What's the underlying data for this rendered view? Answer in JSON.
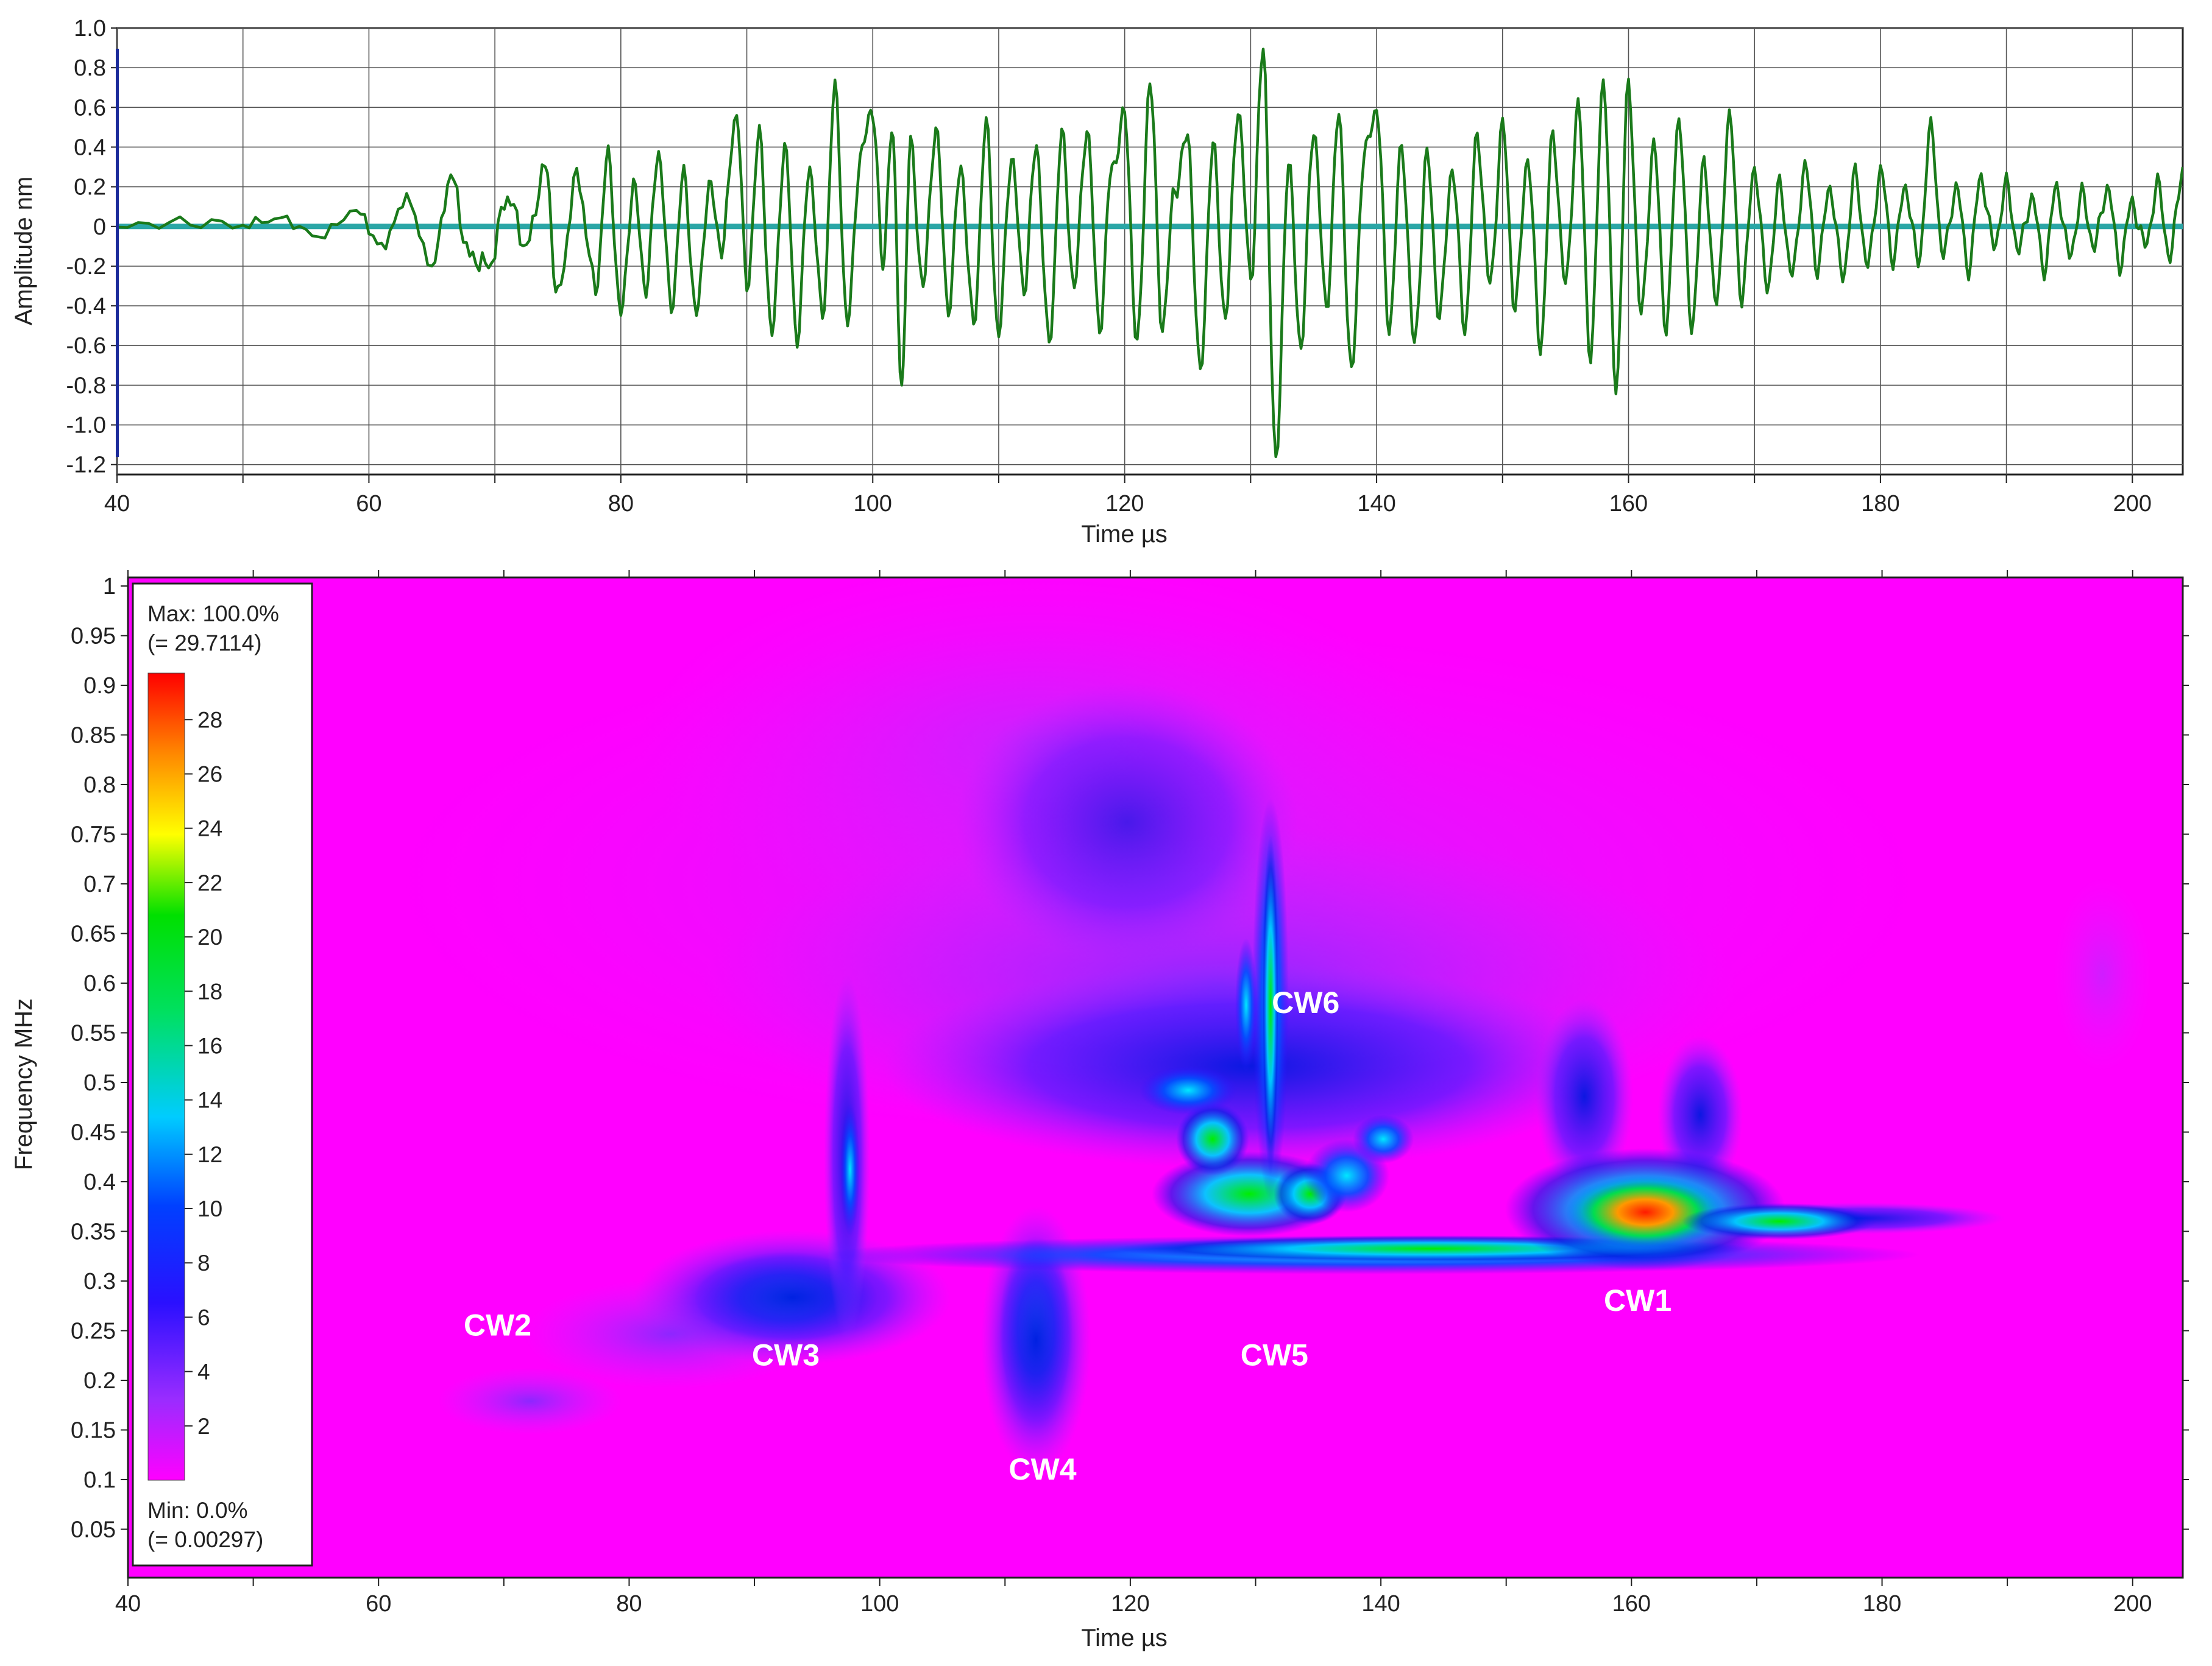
{
  "chart_data": [
    {
      "type": "line",
      "xlabel": "Time  µs",
      "ylabel": "Amplitude  nm",
      "xlim": [
        40,
        204
      ],
      "ylim": [
        -1.25,
        1.0
      ],
      "xticks": [
        "40",
        "60",
        "80",
        "100",
        "120",
        "140",
        "160",
        "180",
        "200"
      ],
      "yticks": [
        "1.0",
        "0.8",
        "0.6",
        "0.4",
        "0.2",
        "0",
        "-0.2",
        "-0.4",
        "-0.6",
        "-0.8",
        "-1.0",
        "-1.2"
      ],
      "grid": true,
      "series": [
        {
          "color": "#1a7a1a",
          "x": [
            40,
            45,
            50,
            53,
            56,
            59,
            61,
            63,
            65,
            66.5,
            68,
            69.5,
            71,
            72.5,
            74,
            75,
            76.5,
            78,
            79,
            80,
            81,
            82,
            83,
            84,
            85,
            86,
            87,
            88,
            89.2,
            90,
            91,
            92,
            93,
            94,
            95,
            96,
            97,
            98,
            99,
            100,
            100.8,
            101.5,
            102.3,
            103,
            104,
            105,
            106,
            107,
            108,
            109,
            110,
            111,
            112,
            113,
            114,
            115,
            116,
            117,
            118,
            119,
            120,
            121,
            122,
            123,
            124,
            125,
            126,
            127,
            128,
            129,
            130,
            131,
            132,
            133,
            134,
            135,
            136,
            137,
            138,
            139,
            140,
            141,
            142,
            143,
            144,
            145,
            146,
            147,
            148,
            149,
            150,
            151,
            152,
            153,
            154,
            155,
            156,
            157,
            158,
            159,
            160,
            161,
            162,
            163,
            164,
            165,
            166,
            167,
            168,
            169,
            170,
            171,
            172,
            173,
            174,
            175,
            176,
            177,
            178,
            179,
            180,
            181,
            182,
            183,
            184,
            185,
            186,
            187,
            188,
            189,
            190,
            191,
            192,
            193,
            194,
            195,
            196,
            197,
            198,
            199,
            200,
            201,
            202,
            203,
            204
          ],
          "y": [
            0,
            0.02,
            0.01,
            0.04,
            -0.05,
            0.08,
            -0.1,
            0.14,
            -0.2,
            0.25,
            -0.15,
            -0.2,
            0.15,
            -0.1,
            0.3,
            -0.35,
            0.25,
            -0.3,
            0.35,
            -0.45,
            0.2,
            -0.3,
            0.38,
            -0.4,
            0.25,
            -0.45,
            0.2,
            -0.1,
            0.58,
            -0.3,
            0.45,
            -0.55,
            0.4,
            -0.55,
            0.3,
            -0.45,
            0.68,
            -0.5,
            0.35,
            0.6,
            -0.2,
            0.5,
            -0.78,
            0.4,
            -0.3,
            0.5,
            -0.4,
            0.3,
            -0.5,
            0.5,
            -0.55,
            0.35,
            -0.3,
            0.4,
            -0.6,
            0.45,
            -0.3,
            0.5,
            -0.5,
            0.3,
            0.55,
            -0.6,
            0.73,
            -0.5,
            0.2,
            0.45,
            -0.75,
            0.4,
            -0.45,
            0.6,
            -0.25,
            0.88,
            -1.2,
            0.3,
            -0.6,
            0.5,
            -0.4,
            0.55,
            -0.75,
            0.35,
            0.6,
            -0.5,
            0.4,
            -0.6,
            0.35,
            -0.45,
            0.3,
            -0.5,
            0.45,
            -0.3,
            0.5,
            -0.4,
            0.35,
            -0.6,
            0.45,
            -0.3,
            0.6,
            -0.65,
            0.75,
            -0.8,
            0.7,
            -0.45,
            0.4,
            -0.5,
            0.55,
            -0.5,
            0.3,
            -0.4,
            0.55,
            -0.35,
            0.3,
            -0.3,
            0.2,
            -0.25,
            0.3,
            -0.2,
            0.2,
            -0.25,
            0.25,
            -0.2,
            0.28,
            -0.15,
            0.2,
            -0.18,
            0.48,
            -0.15,
            0.2,
            -0.2,
            0.25,
            -0.1,
            0.2,
            -0.12,
            0.15,
            -0.2,
            0.2,
            -0.15,
            0.15,
            -0.1,
            0.2,
            -0.18,
            0.12,
            -0.1,
            0.2,
            -0.15,
            0.3
          ]
        },
        {
          "color": "#2aa6a6",
          "x": [
            40,
            204
          ],
          "y": [
            0,
            0
          ]
        }
      ]
    },
    {
      "type": "heatmap",
      "xlabel": "Time  µs",
      "ylabel": "Frequency   MHz",
      "xlim": [
        40,
        204
      ],
      "ylim": [
        0,
        1.0
      ],
      "xticks": [
        "40",
        "60",
        "80",
        "100",
        "120",
        "140",
        "160",
        "180",
        "200"
      ],
      "yticks": [
        "1",
        "0.95",
        "0.9",
        "0.85",
        "0.8",
        "0.75",
        "0.7",
        "0.65",
        "0.6",
        "0.55",
        "0.5",
        "0.45",
        "0.4",
        "0.35",
        "0.3",
        "0.25",
        "0.2",
        "0.15",
        "0.1",
        "0.05"
      ],
      "colorbar": {
        "max_label": "Max: 100.0%",
        "max_value": "(= 29.7114)",
        "min_label": "Min: 0.0%",
        "min_value": "(= 0.00297)",
        "ticks": [
          "28",
          "26",
          "24",
          "22",
          "20",
          "18",
          "16",
          "14",
          "12",
          "10",
          "8",
          "6",
          "4",
          "2"
        ],
        "range": [
          0,
          29.7114
        ],
        "colors": [
          "#ff00ff",
          "#7b2cff",
          "#0000d0",
          "#00ccff",
          "#00e000",
          "#ffff00",
          "#ff8800",
          "#ff0000"
        ]
      },
      "annotations": [
        {
          "label": "CW1",
          "x": 160.5,
          "y": 0.27
        },
        {
          "label": "CW2",
          "x": 69.5,
          "y": 0.245
        },
        {
          "label": "CW3",
          "x": 92.5,
          "y": 0.215
        },
        {
          "label": "CW4",
          "x": 113,
          "y": 0.1
        },
        {
          "label": "CW5",
          "x": 131.5,
          "y": 0.215
        },
        {
          "label": "CW6",
          "x": 134,
          "y": 0.57
        }
      ],
      "blobs": [
        {
          "t": 159.5,
          "f": 0.35,
          "intensity": 29.7
        },
        {
          "t": 161,
          "f": 0.37,
          "intensity": 20
        },
        {
          "t": 130.5,
          "f": 0.35,
          "intensity": 20
        },
        {
          "t": 130.5,
          "f": 0.55,
          "intensity": 14
        },
        {
          "t": 125,
          "f": 0.36,
          "intensity": 12
        },
        {
          "t": 95,
          "f": 0.275,
          "intensity": 11
        },
        {
          "t": 112,
          "f": 0.26,
          "intensity": 8
        },
        {
          "t": 70,
          "f": 0.175,
          "intensity": 3
        }
      ]
    }
  ]
}
